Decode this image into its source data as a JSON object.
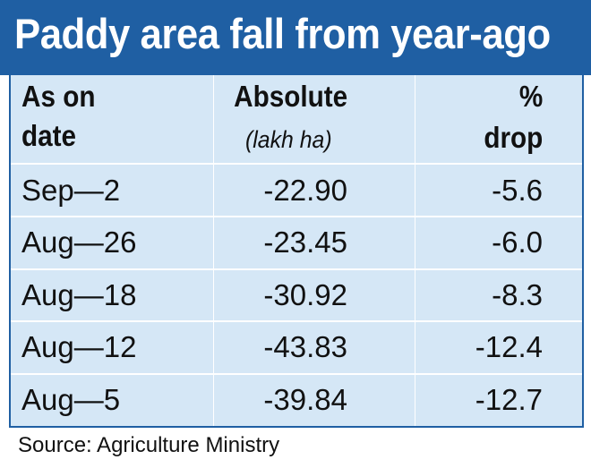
{
  "title": "Paddy area fall from year-ago",
  "headers": {
    "date_line1": "As on",
    "date_line2": "date",
    "absolute": "Absolute",
    "absolute_unit": "(lakh ha)",
    "pct_line1": "%",
    "pct_line2": "drop"
  },
  "rows": [
    {
      "date": "Sep—2",
      "absolute": "-22.90",
      "pct": "-5.6"
    },
    {
      "date": "Aug—26",
      "absolute": "-23.45",
      "pct": "-6.0"
    },
    {
      "date": "Aug—18",
      "absolute": "-30.92",
      "pct": "-8.3"
    },
    {
      "date": "Aug—12",
      "absolute": "-43.83",
      "pct": "-12.4"
    },
    {
      "date": "Aug—5",
      "absolute": "-39.84",
      "pct": "-12.7"
    }
  ],
  "source": "Source: Agriculture Ministry",
  "colors": {
    "title_background": "#1f5fa3",
    "table_background": "#d5e7f6",
    "title_text": "#ffffff"
  },
  "chart_data": {
    "type": "table",
    "title": "Paddy area fall from year-ago",
    "columns": [
      "As on date",
      "Absolute (lakh ha)",
      "% drop"
    ],
    "categories": [
      "Sep—2",
      "Aug—26",
      "Aug—18",
      "Aug—12",
      "Aug—5"
    ],
    "series": [
      {
        "name": "Absolute (lakh ha)",
        "values": [
          -22.9,
          -23.45,
          -30.92,
          -43.83,
          -39.84
        ]
      },
      {
        "name": "% drop",
        "values": [
          -5.6,
          -6.0,
          -8.3,
          -12.4,
          -12.7
        ]
      }
    ]
  }
}
